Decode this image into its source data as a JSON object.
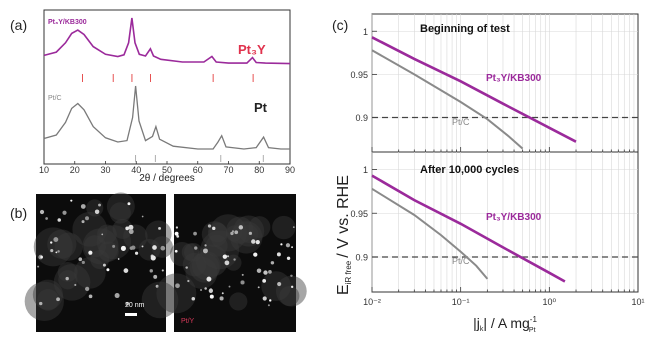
{
  "panels": {
    "a_label": "(a)",
    "b_label": "(b)",
    "c_label": "(c)"
  },
  "chart_data": [
    {
      "type": "line",
      "panel": "a",
      "xlabel": "2θ / degrees",
      "xlim": [
        10,
        90
      ],
      "x_ticks": [
        "10",
        "20",
        "30",
        "40",
        "50",
        "60",
        "70",
        "80",
        "90"
      ],
      "y_ticks_shown": false,
      "series": [
        {
          "name": "Pt₃Y",
          "small_label": "Pt₃Y/KB300",
          "color": "#9b2a9b",
          "points": [
            [
              10,
              0.32
            ],
            [
              14,
              0.38
            ],
            [
              17,
              0.55
            ],
            [
              19,
              0.72
            ],
            [
              21,
              0.78
            ],
            [
              23,
              0.7
            ],
            [
              26,
              0.48
            ],
            [
              30,
              0.34
            ],
            [
              34,
              0.3
            ],
            [
              36,
              0.33
            ],
            [
              37.5,
              0.55
            ],
            [
              38.6,
              1.0
            ],
            [
              39.6,
              0.55
            ],
            [
              41,
              0.34
            ],
            [
              43,
              0.31
            ],
            [
              44.6,
              0.44
            ],
            [
              45.6,
              0.31
            ],
            [
              48,
              0.25
            ],
            [
              55,
              0.2
            ],
            [
              62,
              0.2
            ],
            [
              64.6,
              0.3
            ],
            [
              66,
              0.2
            ],
            [
              70,
              0.18
            ],
            [
              76,
              0.18
            ],
            [
              77.8,
              0.28
            ],
            [
              79,
              0.19
            ],
            [
              82,
              0.18
            ],
            [
              90,
              0.17
            ]
          ]
        },
        {
          "name": "Pt",
          "small_label": "Pt/C",
          "color": "#7a7a7a",
          "points": [
            [
              10,
              0.25
            ],
            [
              14,
              0.3
            ],
            [
              17,
              0.48
            ],
            [
              19,
              0.68
            ],
            [
              21,
              0.75
            ],
            [
              23,
              0.66
            ],
            [
              26,
              0.42
            ],
            [
              30,
              0.26
            ],
            [
              34,
              0.2
            ],
            [
              37,
              0.22
            ],
            [
              38.8,
              0.55
            ],
            [
              39.8,
              1.0
            ],
            [
              40.9,
              0.5
            ],
            [
              43,
              0.22
            ],
            [
              45.3,
              0.28
            ],
            [
              46.4,
              0.42
            ],
            [
              47.6,
              0.24
            ],
            [
              52,
              0.14
            ],
            [
              60,
              0.1
            ],
            [
              65,
              0.1
            ],
            [
              66.6,
              0.2
            ],
            [
              67.8,
              0.29
            ],
            [
              69.2,
              0.13
            ],
            [
              75,
              0.1
            ],
            [
              79,
              0.12
            ],
            [
              81.4,
              0.27
            ],
            [
              83,
              0.12
            ],
            [
              87,
              0.1
            ],
            [
              90,
              0.1
            ]
          ]
        }
      ],
      "reference_ticks": {
        "color": "#e02626",
        "pt3y_peaks": [
          22.5,
          32.5,
          38.6,
          44.6,
          65.0,
          78.0
        ],
        "pt_peaks": [
          39.8,
          46.2,
          67.5,
          81.3
        ]
      }
    },
    {
      "type": "line",
      "panel": "c-top",
      "annotation": "Beginning of test",
      "xscale": "log",
      "xlim": [
        0.01,
        10
      ],
      "ylim": [
        0.86,
        1.02
      ],
      "y_ticks": [
        "1",
        "0.95",
        "0.9"
      ],
      "reference_line": 0.9,
      "series": [
        {
          "name": "Pt₃Y/KB300",
          "color": "#9b2a9b",
          "points": [
            [
              0.01,
              0.993
            ],
            [
              0.03,
              0.968
            ],
            [
              0.1,
              0.942
            ],
            [
              0.3,
              0.916
            ],
            [
              1,
              0.888
            ],
            [
              2,
              0.872
            ]
          ]
        },
        {
          "name": "Pt/C",
          "color": "#8a8a8a",
          "points": [
            [
              0.01,
              0.978
            ],
            [
              0.03,
              0.95
            ],
            [
              0.1,
              0.918
            ],
            [
              0.2,
              0.898
            ],
            [
              0.35,
              0.878
            ],
            [
              0.5,
              0.864
            ]
          ]
        }
      ]
    },
    {
      "type": "line",
      "panel": "c-bottom",
      "annotation": "After 10,000 cycles",
      "xscale": "log",
      "xlim": [
        0.01,
        10
      ],
      "ylim": [
        0.86,
        1.02
      ],
      "x_ticks": [
        "10⁻²",
        "10⁻¹",
        "10⁰",
        "10¹"
      ],
      "y_ticks": [
        "1",
        "0.95",
        "0.9"
      ],
      "reference_line": 0.9,
      "ylabel": "E",
      "ylabel_sub": "iR free",
      "ylabel_rest": "/ V vs. RHE",
      "xlabel_pre": "|j",
      "xlabel_sub": "k",
      "xlabel_mid": "| / A mg",
      "xlabel_sup": "-1",
      "xlabel_sub2": "Pt",
      "series": [
        {
          "name": "Pt₃Y/KB300",
          "color": "#9b2a9b",
          "points": [
            [
              0.01,
              0.993
            ],
            [
              0.03,
              0.965
            ],
            [
              0.1,
              0.938
            ],
            [
              0.3,
              0.911
            ],
            [
              1,
              0.882
            ],
            [
              1.5,
              0.872
            ]
          ]
        },
        {
          "name": "Pt/C",
          "color": "#8a8a8a",
          "points": [
            [
              0.01,
              0.978
            ],
            [
              0.03,
              0.948
            ],
            [
              0.06,
              0.925
            ],
            [
              0.1,
              0.906
            ],
            [
              0.15,
              0.89
            ],
            [
              0.2,
              0.875
            ]
          ]
        }
      ]
    }
  ],
  "images": {
    "scalebar_label": "20 nm",
    "right_label": "Pt/Y"
  }
}
